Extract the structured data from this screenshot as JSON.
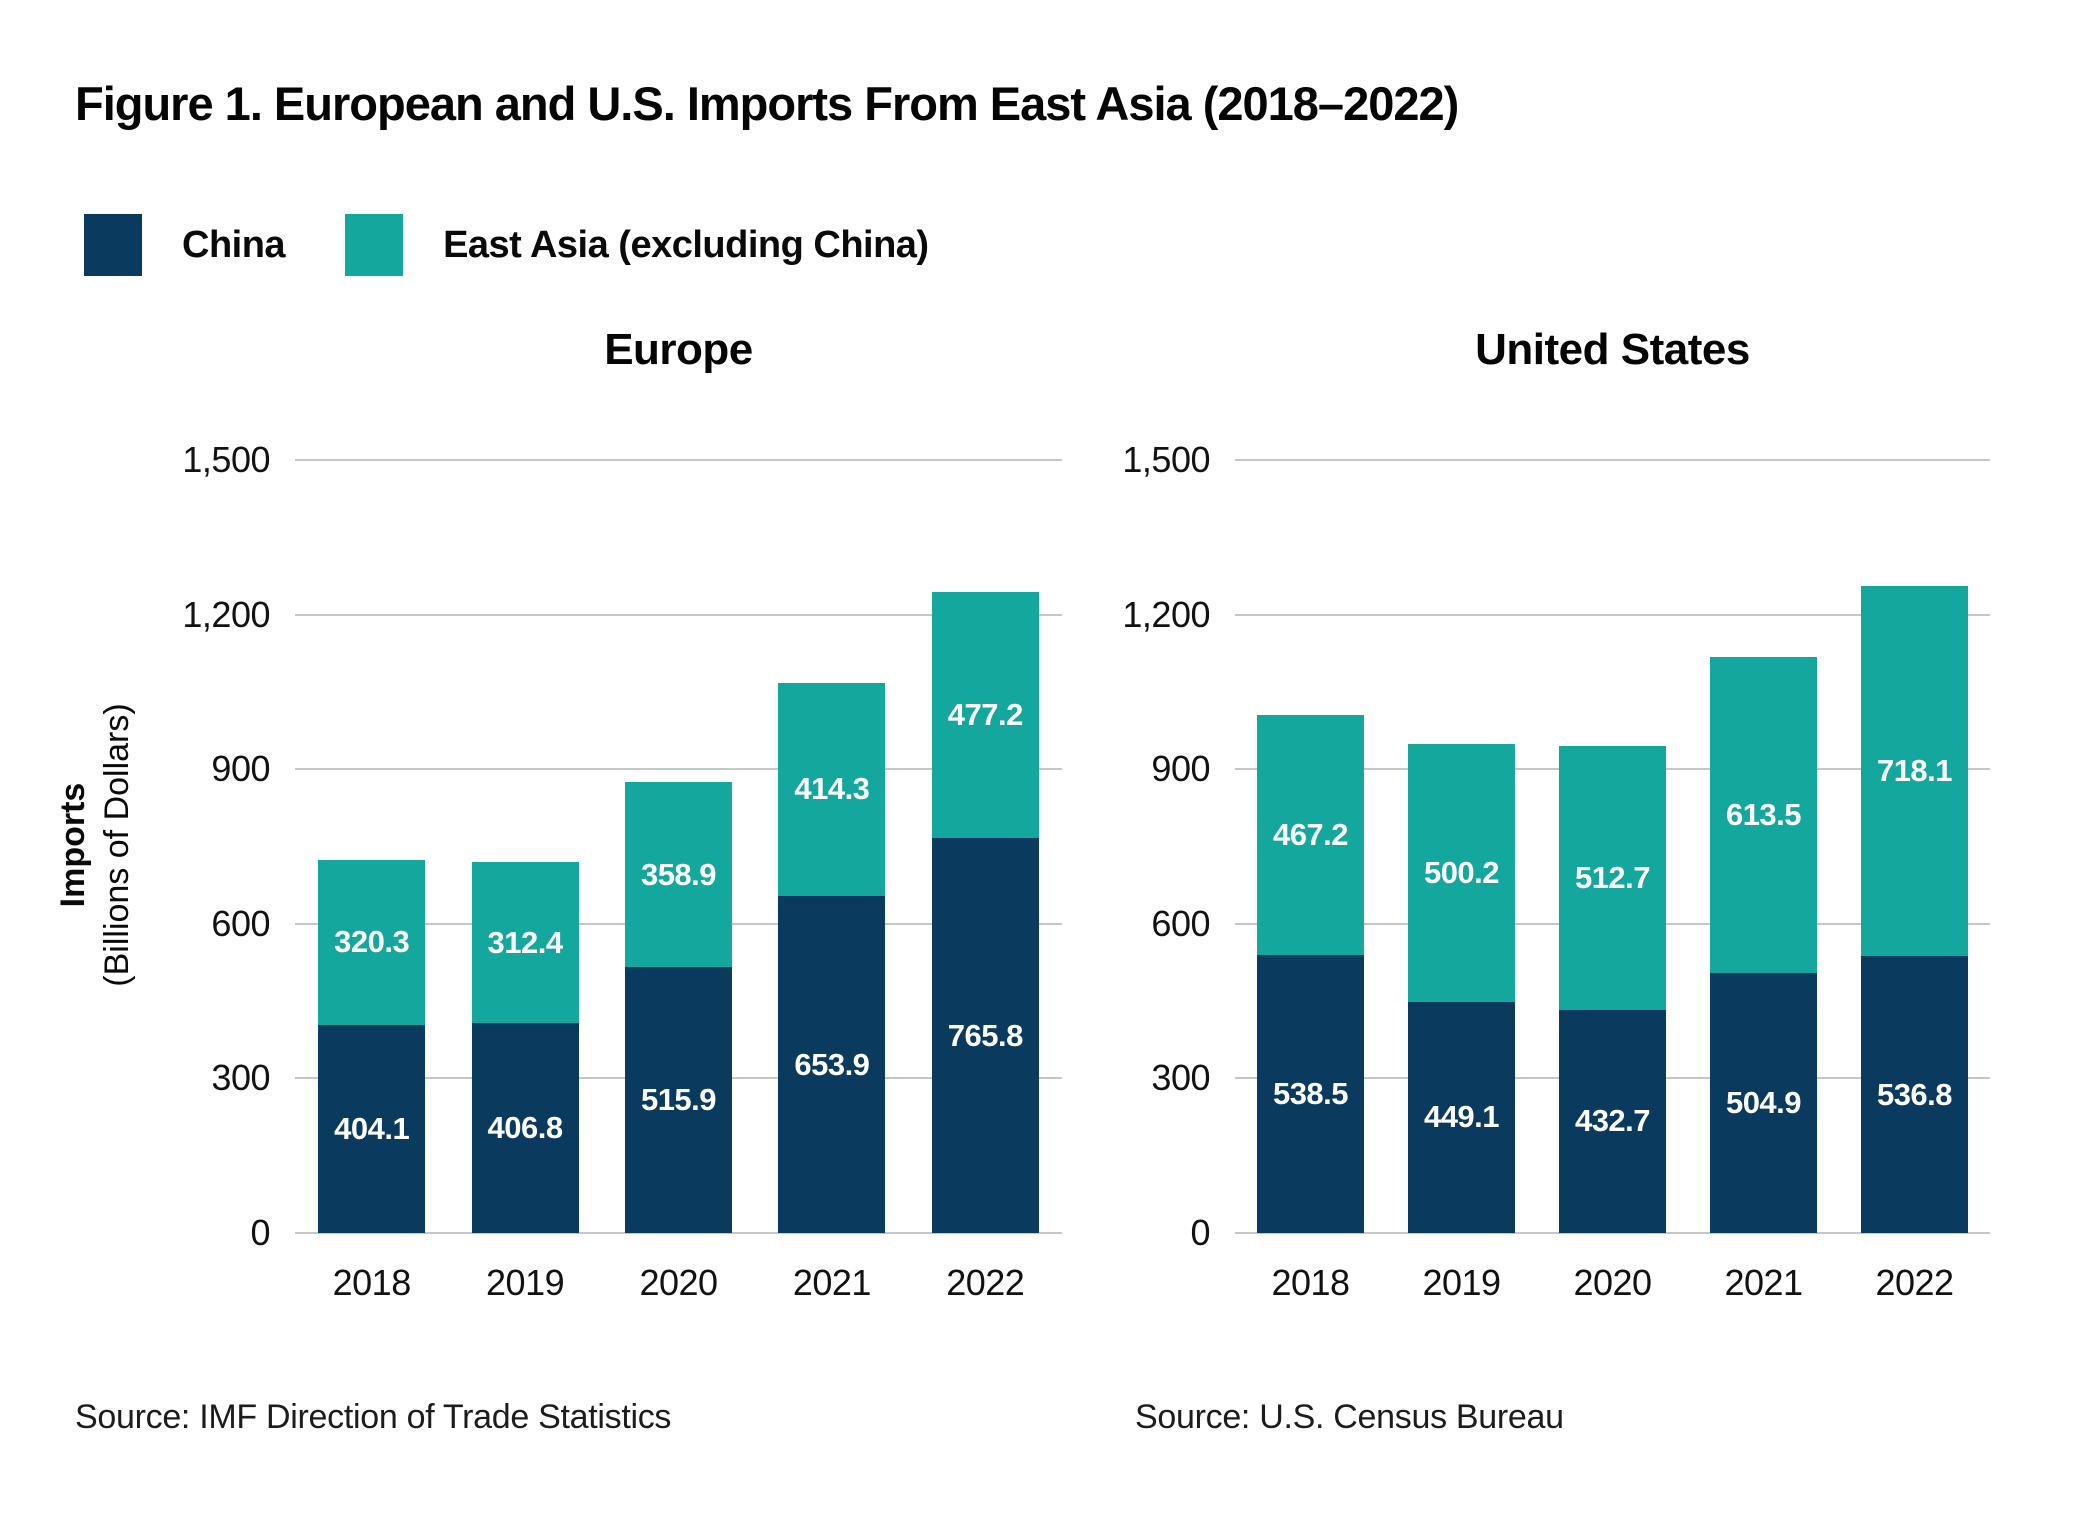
{
  "figure": {
    "title": "Figure 1. European and U.S. Imports From East Asia (2018–2022)"
  },
  "legend": {
    "items": [
      {
        "label": "China",
        "color_key": "china"
      },
      {
        "label": "East Asia (excluding China)",
        "color_key": "east_asia"
      }
    ]
  },
  "y_axis": {
    "label_line1": "Imports",
    "label_line2": "(Billions of Dollars)"
  },
  "colors": {
    "china": "#0A3A5E",
    "east_asia": "#14A79D",
    "gridline": "#C6C6C6",
    "value_label": "#FFFFFF"
  },
  "chart_data": [
    {
      "type": "bar",
      "stacked": true,
      "title": "Europe",
      "categories": [
        "2018",
        "2019",
        "2020",
        "2021",
        "2022"
      ],
      "series": [
        {
          "name": "China",
          "color_key": "china",
          "values": [
            404.1,
            406.8,
            515.9,
            653.9,
            765.8
          ]
        },
        {
          "name": "East Asia (excluding China)",
          "color_key": "east_asia",
          "values": [
            320.3,
            312.4,
            358.9,
            414.3,
            477.2
          ]
        }
      ],
      "ylim": [
        0,
        1500
      ],
      "yticks": [
        0,
        300,
        600,
        900,
        1200,
        1500
      ],
      "ytick_labels": [
        "0",
        "300",
        "600",
        "900",
        "1,200",
        "1,500"
      ],
      "grid": true,
      "legend_position": "top",
      "source": "Source: IMF Direction of Trade Statistics"
    },
    {
      "type": "bar",
      "stacked": true,
      "title": "United States",
      "categories": [
        "2018",
        "2019",
        "2020",
        "2021",
        "2022"
      ],
      "series": [
        {
          "name": "China",
          "color_key": "china",
          "values": [
            538.5,
            449.1,
            432.7,
            504.9,
            536.8
          ]
        },
        {
          "name": "East Asia (excluding China)",
          "color_key": "east_asia",
          "values": [
            467.2,
            500.2,
            512.7,
            613.5,
            718.1
          ]
        }
      ],
      "ylim": [
        0,
        1500
      ],
      "yticks": [
        0,
        300,
        600,
        900,
        1200,
        1500
      ],
      "ytick_labels": [
        "0",
        "300",
        "600",
        "900",
        "1,200",
        "1,500"
      ],
      "grid": true,
      "legend_position": "top",
      "source": "Source: U.S. Census Bureau"
    }
  ]
}
